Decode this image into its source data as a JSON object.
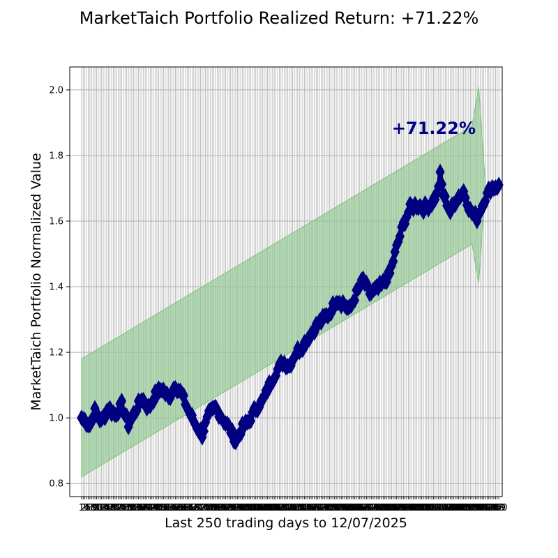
{
  "chart_data": {
    "type": "line",
    "title": "MarketTaich Portfolio Realized Return: +71.22%",
    "xlabel": "Last 250 trading days to 12/07/2025",
    "ylabel": "MarketTaich Portfolio Normalized Value",
    "annotation": "+71.22%",
    "ylim": [
      0.76,
      2.07
    ],
    "xlim": [
      -7,
      251
    ],
    "yticks": [
      0.8,
      1.0,
      1.2,
      1.4,
      1.6,
      1.8,
      2.0
    ],
    "grid": true,
    "colors": {
      "series": "#000080",
      "band_fill": "#90c890",
      "band_edge": "#80c080",
      "grid": "#b0b0b0",
      "annotation": "#000080"
    },
    "band": {
      "x": [
        0,
        233
      ],
      "upper": [
        1.18,
        1.89
      ],
      "lower": [
        0.82,
        1.53
      ],
      "tip_x": 237,
      "tip_upper": 2.01,
      "tip_mid": 1.71,
      "tip_lower": 1.41
    },
    "keypoints": [
      [
        0,
        1.0
      ],
      [
        5,
        0.98
      ],
      [
        8,
        1.02
      ],
      [
        12,
        0.99
      ],
      [
        16,
        1.03
      ],
      [
        20,
        1.01
      ],
      [
        24,
        1.04
      ],
      [
        28,
        0.98
      ],
      [
        32,
        1.02
      ],
      [
        36,
        1.06
      ],
      [
        40,
        1.03
      ],
      [
        44,
        1.07
      ],
      [
        48,
        1.09
      ],
      [
        52,
        1.06
      ],
      [
        56,
        1.1
      ],
      [
        60,
        1.07
      ],
      [
        64,
        1.02
      ],
      [
        68,
        0.98
      ],
      [
        72,
        0.95
      ],
      [
        76,
        1.01
      ],
      [
        80,
        1.03
      ],
      [
        84,
        1.0
      ],
      [
        88,
        0.97
      ],
      [
        92,
        0.93
      ],
      [
        96,
        0.97
      ],
      [
        100,
        0.99
      ],
      [
        104,
        1.03
      ],
      [
        108,
        1.05
      ],
      [
        112,
        1.1
      ],
      [
        116,
        1.14
      ],
      [
        120,
        1.17
      ],
      [
        124,
        1.16
      ],
      [
        128,
        1.2
      ],
      [
        132,
        1.22
      ],
      [
        136,
        1.25
      ],
      [
        140,
        1.28
      ],
      [
        144,
        1.3
      ],
      [
        148,
        1.32
      ],
      [
        152,
        1.36
      ],
      [
        156,
        1.35
      ],
      [
        160,
        1.33
      ],
      [
        164,
        1.38
      ],
      [
        168,
        1.42
      ],
      [
        172,
        1.38
      ],
      [
        176,
        1.39
      ],
      [
        180,
        1.41
      ],
      [
        184,
        1.44
      ],
      [
        188,
        1.52
      ],
      [
        192,
        1.59
      ],
      [
        196,
        1.64
      ],
      [
        200,
        1.65
      ],
      [
        204,
        1.64
      ],
      [
        208,
        1.65
      ],
      [
        212,
        1.68
      ],
      [
        214,
        1.74
      ],
      [
        216,
        1.68
      ],
      [
        220,
        1.63
      ],
      [
        224,
        1.67
      ],
      [
        228,
        1.69
      ],
      [
        232,
        1.63
      ],
      [
        236,
        1.61
      ],
      [
        240,
        1.66
      ],
      [
        244,
        1.7
      ],
      [
        249,
        1.71
      ]
    ],
    "noise_seed": 7,
    "noise_amp": 0.012,
    "n_points": 250,
    "x": [
      1,
      2,
      3,
      4,
      5,
      6,
      7,
      8,
      9,
      10,
      11,
      12,
      13,
      14,
      15,
      16,
      17,
      18,
      19,
      20,
      21,
      22,
      23,
      24,
      25,
      26,
      27,
      28,
      29,
      30,
      31,
      32,
      33,
      34,
      35,
      36,
      37,
      38,
      39,
      40,
      41,
      42,
      43,
      44,
      45,
      46,
      47,
      48,
      49,
      50,
      51,
      52,
      53,
      54,
      55,
      56,
      57,
      58,
      59,
      60,
      61,
      62,
      63,
      64,
      65,
      66,
      67,
      68,
      69,
      70,
      71,
      72,
      73,
      74,
      75,
      76,
      77,
      78,
      79,
      80,
      81,
      82,
      83,
      84,
      85,
      86,
      87,
      88,
      89,
      90,
      91,
      92,
      93,
      94,
      95,
      96,
      97,
      98,
      99,
      100,
      101,
      102,
      103,
      104,
      105,
      106,
      107,
      108,
      109,
      110,
      111,
      112,
      113,
      114,
      115,
      116,
      117,
      118,
      119,
      120,
      121,
      122,
      123,
      124,
      125,
      126,
      127,
      128,
      129,
      130,
      131,
      132,
      133,
      134,
      135,
      136,
      137,
      138,
      139,
      140,
      141,
      142,
      143,
      144,
      145,
      146,
      147,
      148,
      149,
      150,
      151,
      152,
      153,
      154,
      155,
      156,
      157,
      158,
      159,
      160,
      161,
      162,
      163,
      164,
      165,
      166,
      167,
      168,
      169,
      170,
      171,
      172,
      173,
      174,
      175,
      176,
      177,
      178,
      179,
      180,
      181,
      182,
      183,
      184,
      185,
      186,
      187,
      188,
      189,
      190,
      191,
      192,
      193,
      194,
      195,
      196,
      197,
      198,
      199,
      200,
      201,
      202,
      203,
      204,
      205,
      206,
      207,
      208,
      209,
      210,
      211,
      212,
      213,
      214,
      215,
      216,
      217,
      218,
      219,
      220,
      221,
      222,
      223,
      224,
      225,
      226,
      227,
      228,
      229,
      230,
      231,
      232,
      233,
      234,
      235,
      236,
      237,
      238,
      239,
      240,
      241,
      242,
      243,
      244,
      245,
      246,
      247,
      248,
      249,
      250
    ]
  }
}
